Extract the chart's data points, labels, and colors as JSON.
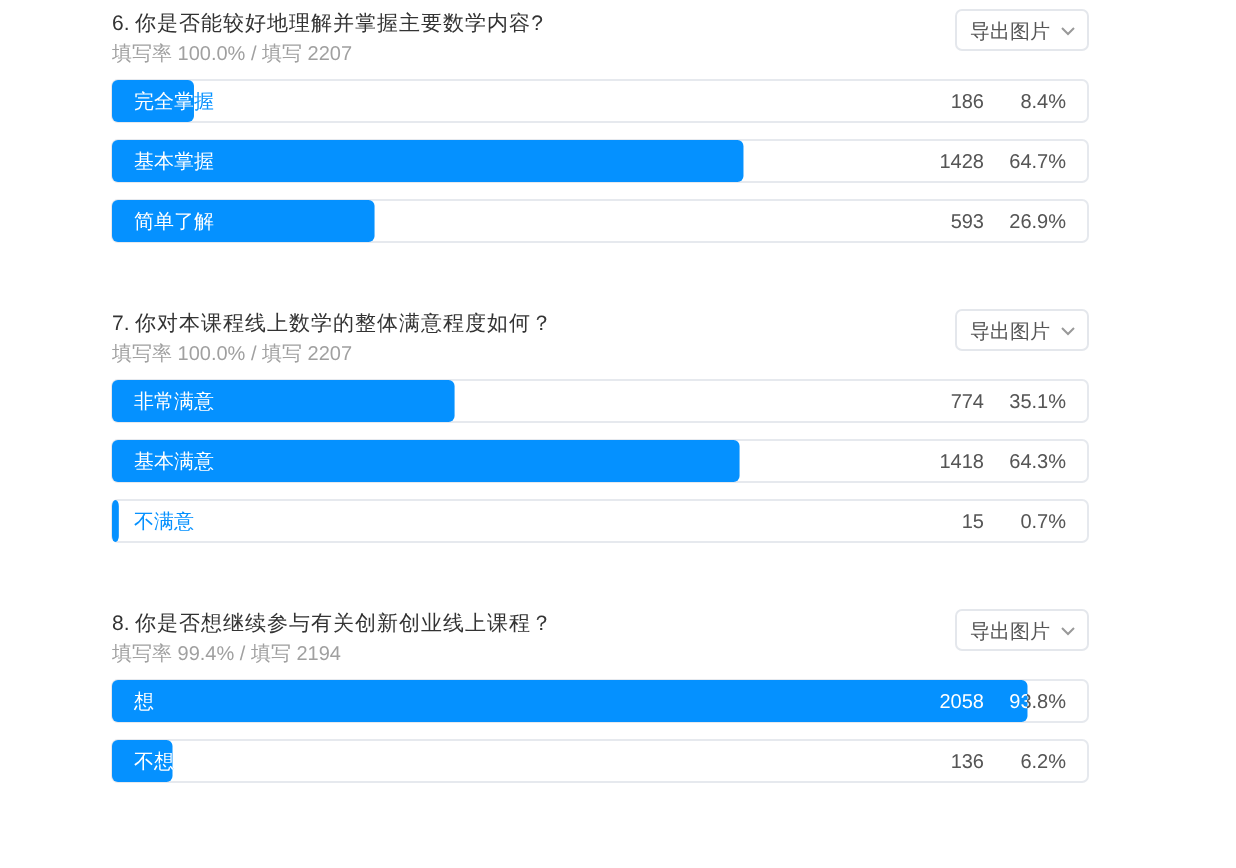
{
  "chart_data": [
    {
      "type": "bar",
      "orientation": "horizontal",
      "title": "6. 你是否能较好地理解并掌握主要数学内容?",
      "subtitle": "填写率 100.0% / 填写 2207",
      "categories": [
        "完全掌握",
        "基本掌握",
        "简单了解"
      ],
      "values": [
        8.4,
        64.7,
        26.9
      ],
      "value_labels": [
        "8.4%",
        "64.7%",
        "26.9%"
      ],
      "color": "#0591ff",
      "xlim": [
        0,
        100
      ],
      "tick_labels": "y",
      "annotations": [
        "导出图片",
        "186",
        "1428",
        "593"
      ]
    },
    {
      "type": "bar",
      "orientation": "horizontal",
      "title": "7. 你对本课程线上数学的整体满意程度如何？",
      "subtitle": "填写率 100.0% / 填写 2207",
      "categories": [
        "非常满意",
        "基本满意",
        "不满意"
      ],
      "values": [
        35.1,
        64.3,
        0.7
      ],
      "value_labels": [
        "35.1%",
        "64.3%",
        "0.7%"
      ],
      "color": "#0591ff",
      "xlim": [
        0,
        100
      ],
      "tick_labels": "y",
      "annotations": [
        "导出图片",
        "774",
        "1418",
        "15"
      ]
    },
    {
      "type": "bar",
      "orientation": "horizontal",
      "title": "8. 你是否想继续参与有关创新创业线上课程？",
      "subtitle": "填写率 99.4% / 填写 2194",
      "categories": [
        "想",
        "不想"
      ],
      "values": [
        93.8,
        6.2
      ],
      "value_labels": [
        "93.8%",
        "6.2%"
      ],
      "color": "#0591ff",
      "xlim": [
        0,
        100
      ],
      "tick_labels": "y",
      "annotations": [
        "导出图片",
        "2058",
        "136"
      ]
    }
  ]
}
